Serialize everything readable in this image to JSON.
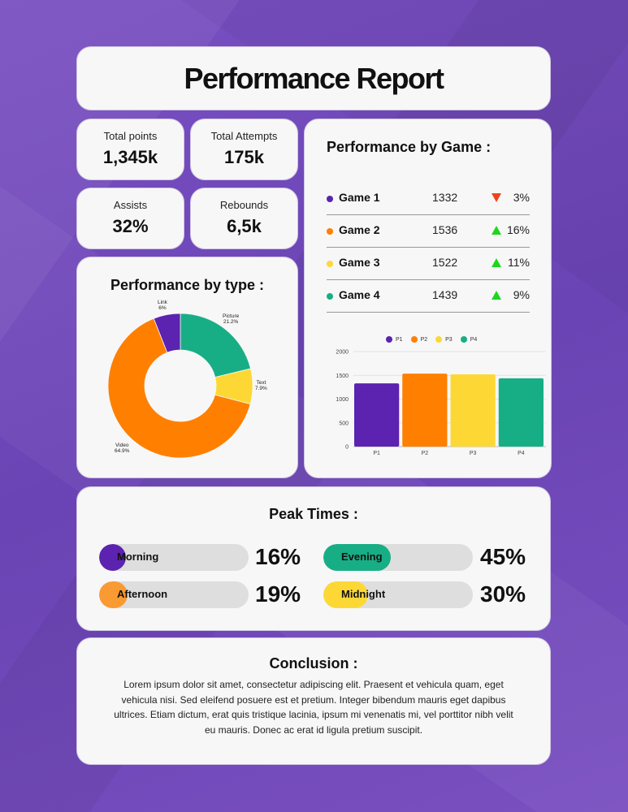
{
  "title": "Performance Report",
  "stats": [
    {
      "label": "Total points",
      "value": "1,345k"
    },
    {
      "label": "Total Attempts",
      "value": "175k"
    },
    {
      "label": "Assists",
      "value": "32%"
    },
    {
      "label": "Rebounds",
      "value": "6,5k"
    }
  ],
  "by_type": {
    "title": "Performance by type :",
    "slices": [
      {
        "label": "Link",
        "pct": "6%",
        "color": "#5b23b0"
      },
      {
        "label": "Picture",
        "pct": "21.2%",
        "color": "#18ae85"
      },
      {
        "label": "Text",
        "pct": "7.9%",
        "color": "#fdd835"
      },
      {
        "label": "Video",
        "pct": "64.9%",
        "color": "#ff7f00"
      }
    ]
  },
  "by_game": {
    "title": "Performance by Game :",
    "rows": [
      {
        "name": "Game 1",
        "value": "1332",
        "trend": "down",
        "pct": "3%",
        "color": "#5b23b0"
      },
      {
        "name": "Game 2",
        "value": "1536",
        "trend": "up",
        "pct": "16%",
        "color": "#ff7f00"
      },
      {
        "name": "Game 3",
        "value": "1522",
        "trend": "up",
        "pct": "11%",
        "color": "#fdd835"
      },
      {
        "name": "Game 4",
        "value": "1439",
        "trend": "up",
        "pct": "9%",
        "color": "#18ae85"
      }
    ]
  },
  "peak": {
    "title": "Peak Times :",
    "items": [
      {
        "label": "Morning",
        "pct": "16%",
        "color": "#5b23b0"
      },
      {
        "label": "Afternoon",
        "pct": "19%",
        "color": "#f99a32"
      },
      {
        "label": "Evening",
        "pct": "45%",
        "color": "#18ae85"
      },
      {
        "label": "Midnight",
        "pct": "30%",
        "color": "#fdd835"
      }
    ]
  },
  "conclusion": {
    "title": "Conclusion :",
    "text": "Lorem ipsum dolor sit amet, consectetur adipiscing elit. Praesent et vehicula quam, eget vehicula nisi. Sed eleifend posuere est et pretium. Integer bibendum mauris eget dapibus ultrices. Etiam dictum, erat quis tristique lacinia, ipsum mi venenatis mi, vel porttitor nibh velit eu mauris. Donec ac erat id ligula pretium suscipit."
  },
  "chart_data": [
    {
      "type": "pie",
      "title": "Performance by type :",
      "categories": [
        "Link",
        "Picture",
        "Text",
        "Video"
      ],
      "values": [
        6,
        21.2,
        7.9,
        64.9
      ],
      "colors": [
        "#5b23b0",
        "#18ae85",
        "#fdd835",
        "#ff7f00"
      ],
      "donut": true
    },
    {
      "type": "bar",
      "title": "",
      "categories": [
        "P1",
        "P2",
        "P3",
        "P4"
      ],
      "values": [
        1332,
        1536,
        1522,
        1439
      ],
      "colors": [
        "#5b23b0",
        "#ff7f00",
        "#fdd835",
        "#18ae85"
      ],
      "legend": [
        "P1",
        "P2",
        "P3",
        "P4"
      ],
      "legend_position": "top",
      "yticks": [
        0,
        500,
        1000,
        1500,
        2000
      ],
      "ylim": [
        0,
        2000
      ],
      "grid": true
    }
  ]
}
